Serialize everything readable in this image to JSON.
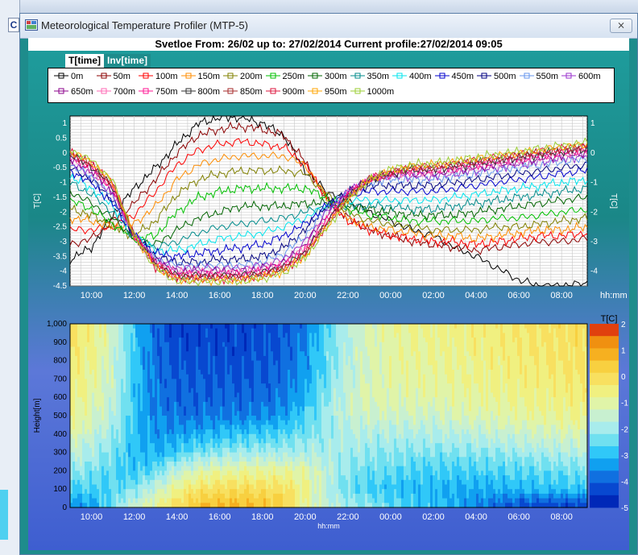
{
  "window": {
    "title": "Meteorological Temperature Profiler (MTP-5)",
    "close_label": "⨯"
  },
  "header": {
    "text": "Svetloe  From: 26/02 up to: 27/02/2014 Current profile:27/02/2014 09:05"
  },
  "tabs": [
    {
      "label": "T[time]",
      "active": true
    },
    {
      "label": "Inv[time]",
      "active": false
    }
  ],
  "desktop": {
    "left_tab_label": "C"
  },
  "chart_data": [
    {
      "type": "line",
      "ylabel_left": "T[C]",
      "ylabel_right": "T[C]",
      "xlabel": "hh:mm",
      "ylim": [
        -4.5,
        1.25
      ],
      "y_ticks_left": [
        "1",
        "0.5",
        "0",
        "-0.5",
        "-1",
        "-1.5",
        "-2",
        "-2.5",
        "-3",
        "-3.5",
        "-4",
        "-4.5"
      ],
      "y_tick_values_left": [
        1,
        0.5,
        0,
        -0.5,
        -1,
        -1.5,
        -2,
        -2.5,
        -3,
        -3.5,
        -4,
        -4.5
      ],
      "y_ticks_right": [
        "1",
        "0",
        "-1",
        "-2",
        "-3",
        "-4"
      ],
      "y_tick_values_right": [
        1,
        0,
        -1,
        -2,
        -3,
        -4
      ],
      "x_range_hours": [
        9.0,
        33.2
      ],
      "x_ticks": [
        "10:00",
        "12:00",
        "14:00",
        "16:00",
        "18:00",
        "20:00",
        "22:00",
        "00:00",
        "02:00",
        "04:00",
        "06:00",
        "08:00"
      ],
      "x_tick_hours": [
        10,
        12,
        14,
        16,
        18,
        20,
        22,
        24,
        26,
        28,
        30,
        32
      ],
      "grid": true,
      "legend_position": "top",
      "hours": [
        9,
        10,
        11,
        12,
        13,
        14,
        15,
        16,
        17,
        18,
        19,
        20,
        21,
        22,
        23,
        24,
        25,
        26,
        27,
        28,
        29,
        30,
        31,
        32,
        33.2
      ],
      "series": [
        {
          "name": "0m",
          "color": "#000000",
          "values": [
            -3.6,
            -3.2,
            -2.1,
            -1.2,
            -0.5,
            0.3,
            1.0,
            1.2,
            1.2,
            1.0,
            0.6,
            -0.6,
            -1.3,
            -1.6,
            -2.0,
            -2.3,
            -2.6,
            -2.8,
            -3.2,
            -3.5,
            -3.9,
            -4.3,
            -4.5,
            -4.5,
            -4.4
          ]
        },
        {
          "name": "50m",
          "color": "#8b0000",
          "values": [
            -3.1,
            -2.9,
            -2.3,
            -1.7,
            -0.9,
            0.0,
            0.6,
            0.8,
            0.9,
            0.8,
            0.6,
            -0.3,
            -1.6,
            -2.2,
            -2.6,
            -2.8,
            -3.0,
            -3.1,
            -3.2,
            -3.3,
            -3.2,
            -3.1,
            -3.0,
            -3.0,
            -2.9
          ]
        },
        {
          "name": "100m",
          "color": "#ff0000",
          "values": [
            -2.6,
            -2.6,
            -2.5,
            -2.1,
            -1.3,
            -0.4,
            0.1,
            0.3,
            0.4,
            0.3,
            0.2,
            -0.4,
            -1.5,
            -2.3,
            -2.6,
            -2.8,
            -2.9,
            -3.0,
            -3.0,
            -3.1,
            -3.0,
            -2.9,
            -2.8,
            -2.8,
            -2.7
          ]
        },
        {
          "name": "150m",
          "color": "#ff8c00",
          "values": [
            -2.2,
            -2.3,
            -2.5,
            -2.4,
            -1.8,
            -0.9,
            -0.4,
            -0.2,
            -0.1,
            -0.1,
            -0.1,
            -0.4,
            -1.5,
            -2.2,
            -2.5,
            -2.6,
            -2.7,
            -2.8,
            -2.8,
            -2.9,
            -2.8,
            -2.7,
            -2.6,
            -2.6,
            -2.5
          ]
        },
        {
          "name": "200m",
          "color": "#808000",
          "values": [
            -1.9,
            -2.1,
            -2.5,
            -2.8,
            -2.3,
            -1.4,
            -0.9,
            -0.7,
            -0.6,
            -0.6,
            -0.6,
            -0.7,
            -1.4,
            -2.0,
            -2.3,
            -2.4,
            -2.5,
            -2.6,
            -2.6,
            -2.6,
            -2.5,
            -2.5,
            -2.4,
            -2.3,
            -2.2
          ]
        },
        {
          "name": "250m",
          "color": "#00c000",
          "values": [
            -1.6,
            -1.9,
            -2.4,
            -2.9,
            -2.8,
            -2.0,
            -1.5,
            -1.3,
            -1.2,
            -1.2,
            -1.2,
            -1.2,
            -1.5,
            -1.9,
            -2.1,
            -2.2,
            -2.3,
            -2.3,
            -2.3,
            -2.3,
            -2.2,
            -2.2,
            -2.1,
            -2.0,
            -1.9
          ]
        },
        {
          "name": "300m",
          "color": "#006400",
          "values": [
            -1.3,
            -1.7,
            -2.2,
            -2.9,
            -3.1,
            -2.6,
            -2.2,
            -2.0,
            -1.8,
            -1.8,
            -1.8,
            -1.7,
            -1.7,
            -1.8,
            -1.9,
            -2.0,
            -2.1,
            -2.1,
            -2.1,
            -2.0,
            -1.9,
            -1.8,
            -1.7,
            -1.6,
            -1.5
          ]
        },
        {
          "name": "350m",
          "color": "#008b8b",
          "values": [
            -1.0,
            -1.4,
            -2.0,
            -2.9,
            -3.2,
            -3.0,
            -2.7,
            -2.5,
            -2.4,
            -2.3,
            -2.2,
            -2.0,
            -1.8,
            -1.8,
            -1.8,
            -1.8,
            -1.9,
            -1.9,
            -1.8,
            -1.7,
            -1.6,
            -1.5,
            -1.4,
            -1.3,
            -1.2
          ]
        },
        {
          "name": "400m",
          "color": "#00e5ee",
          "values": [
            -0.8,
            -1.2,
            -1.8,
            -2.8,
            -3.3,
            -3.3,
            -3.1,
            -2.9,
            -2.8,
            -2.7,
            -2.5,
            -2.2,
            -1.8,
            -1.6,
            -1.6,
            -1.6,
            -1.6,
            -1.6,
            -1.5,
            -1.4,
            -1.3,
            -1.2,
            -1.1,
            -1.0,
            -0.9
          ]
        },
        {
          "name": "450m",
          "color": "#0000cd",
          "values": [
            -0.6,
            -1.0,
            -1.7,
            -2.8,
            -3.4,
            -3.5,
            -3.4,
            -3.3,
            -3.2,
            -3.1,
            -2.8,
            -2.4,
            -1.8,
            -1.4,
            -1.3,
            -1.3,
            -1.3,
            -1.3,
            -1.2,
            -1.1,
            -1.0,
            -0.9,
            -0.8,
            -0.7,
            -0.6
          ]
        },
        {
          "name": "500m",
          "color": "#000080",
          "values": [
            -0.5,
            -0.9,
            -1.6,
            -2.8,
            -3.5,
            -3.7,
            -3.7,
            -3.6,
            -3.6,
            -3.5,
            -3.2,
            -2.6,
            -1.8,
            -1.3,
            -1.1,
            -1.1,
            -1.1,
            -1.1,
            -1.0,
            -0.9,
            -0.8,
            -0.7,
            -0.6,
            -0.5,
            -0.4
          ]
        },
        {
          "name": "550m",
          "color": "#6495ed",
          "values": [
            -0.4,
            -0.8,
            -1.5,
            -2.8,
            -3.6,
            -3.8,
            -3.8,
            -3.8,
            -3.8,
            -3.7,
            -3.4,
            -2.8,
            -1.9,
            -1.3,
            -1.0,
            -0.9,
            -0.9,
            -0.9,
            -0.8,
            -0.7,
            -0.6,
            -0.5,
            -0.4,
            -0.3,
            -0.2
          ]
        },
        {
          "name": "600m",
          "color": "#9932cc",
          "values": [
            -0.3,
            -0.7,
            -1.4,
            -2.8,
            -3.6,
            -3.9,
            -3.9,
            -3.9,
            -3.9,
            -3.8,
            -3.6,
            -3.0,
            -2.0,
            -1.3,
            -0.9,
            -0.8,
            -0.8,
            -0.8,
            -0.7,
            -0.6,
            -0.5,
            -0.4,
            -0.3,
            -0.2,
            -0.1
          ]
        },
        {
          "name": "650m",
          "color": "#8b008b",
          "values": [
            -0.2,
            -0.6,
            -1.3,
            -2.8,
            -3.7,
            -4.0,
            -4.0,
            -4.0,
            -4.0,
            -3.9,
            -3.7,
            -3.1,
            -2.1,
            -1.3,
            -0.9,
            -0.7,
            -0.7,
            -0.7,
            -0.6,
            -0.5,
            -0.4,
            -0.3,
            -0.2,
            -0.1,
            0.0
          ]
        },
        {
          "name": "700m",
          "color": "#ff69b4",
          "values": [
            -0.15,
            -0.55,
            -1.25,
            -2.8,
            -3.7,
            -4.05,
            -4.05,
            -4.05,
            -4.05,
            -3.95,
            -3.75,
            -3.2,
            -2.2,
            -1.35,
            -0.9,
            -0.7,
            -0.65,
            -0.65,
            -0.55,
            -0.45,
            -0.35,
            -0.25,
            -0.15,
            -0.05,
            0.05
          ]
        },
        {
          "name": "750m",
          "color": "#ff1493",
          "values": [
            -0.1,
            -0.5,
            -1.2,
            -2.8,
            -3.75,
            -4.1,
            -4.1,
            -4.1,
            -4.1,
            -4.0,
            -3.8,
            -3.3,
            -2.3,
            -1.4,
            -0.9,
            -0.7,
            -0.6,
            -0.6,
            -0.5,
            -0.4,
            -0.3,
            -0.2,
            -0.1,
            0.0,
            0.1
          ]
        },
        {
          "name": "800m",
          "color": "#2f2f2f",
          "values": [
            -0.05,
            -0.45,
            -1.15,
            -2.8,
            -3.8,
            -4.15,
            -4.15,
            -4.15,
            -4.15,
            -4.05,
            -3.85,
            -3.35,
            -2.35,
            -1.45,
            -0.9,
            -0.7,
            -0.55,
            -0.55,
            -0.45,
            -0.35,
            -0.25,
            -0.15,
            -0.05,
            0.05,
            0.15
          ]
        },
        {
          "name": "850m",
          "color": "#a52a2a",
          "values": [
            0.0,
            -0.4,
            -1.1,
            -2.8,
            -3.8,
            -4.2,
            -4.2,
            -4.2,
            -4.2,
            -4.1,
            -3.9,
            -3.4,
            -2.4,
            -1.5,
            -0.9,
            -0.7,
            -0.5,
            -0.5,
            -0.4,
            -0.3,
            -0.2,
            -0.1,
            0.0,
            0.1,
            0.2
          ]
        },
        {
          "name": "900m",
          "color": "#dc143c",
          "values": [
            0.0,
            -0.35,
            -1.05,
            -2.8,
            -3.85,
            -4.25,
            -4.25,
            -4.25,
            -4.25,
            -4.15,
            -3.95,
            -3.45,
            -2.45,
            -1.5,
            -0.9,
            -0.65,
            -0.5,
            -0.45,
            -0.35,
            -0.25,
            -0.15,
            -0.05,
            0.05,
            0.15,
            0.25
          ]
        },
        {
          "name": "950m",
          "color": "#ffa500",
          "values": [
            0.05,
            -0.3,
            -1.0,
            -2.8,
            -3.85,
            -4.3,
            -4.3,
            -4.3,
            -4.3,
            -4.2,
            -4.0,
            -3.5,
            -2.5,
            -1.55,
            -0.9,
            -0.6,
            -0.45,
            -0.4,
            -0.3,
            -0.2,
            -0.1,
            0.0,
            0.1,
            0.2,
            0.3
          ]
        },
        {
          "name": "1000m",
          "color": "#9acd32",
          "values": [
            0.1,
            -0.25,
            -0.95,
            -2.8,
            -3.9,
            -4.35,
            -4.35,
            -4.35,
            -4.35,
            -4.25,
            -4.05,
            -3.55,
            -2.55,
            -1.6,
            -0.9,
            -0.55,
            -0.4,
            -0.35,
            -0.25,
            -0.15,
            -0.05,
            0.05,
            0.15,
            0.25,
            0.35
          ]
        }
      ]
    },
    {
      "type": "heatmap",
      "ylabel": "Height[m]",
      "xlabel": "hh:mm",
      "colorbar_label": "T[C]",
      "ylim": [
        0,
        1000
      ],
      "y_ticks": [
        "1,000",
        "900",
        "800",
        "700",
        "600",
        "500",
        "400",
        "300",
        "200",
        "100",
        "0"
      ],
      "y_tick_values": [
        1000,
        900,
        800,
        700,
        600,
        500,
        400,
        300,
        200,
        100,
        0
      ],
      "x_range_hours": [
        9.0,
        33.2
      ],
      "x_ticks": [
        "10:00",
        "12:00",
        "14:00",
        "16:00",
        "18:00",
        "20:00",
        "22:00",
        "00:00",
        "02:00",
        "04:00",
        "06:00",
        "08:00"
      ],
      "x_tick_hours": [
        10,
        12,
        14,
        16,
        18,
        20,
        22,
        24,
        26,
        28,
        30,
        32
      ],
      "colorbar_ticks": [
        "2",
        "1",
        "0",
        "-1",
        "-2",
        "-3",
        "-4",
        "-5"
      ],
      "colorbar_levels": [
        2,
        1.5,
        1,
        0.5,
        0,
        -0.5,
        -1,
        -1.5,
        -2,
        -2.5,
        -3,
        -3.5,
        -4,
        -4.5,
        -5
      ],
      "colorbar_colors": [
        "#e0400e",
        "#f09010",
        "#f6b020",
        "#f8d040",
        "#f8e060",
        "#f0f080",
        "#e0f4a8",
        "#c8f0d0",
        "#a8ecec",
        "#70e0f0",
        "#30c8f8",
        "#10a0f0",
        "#1070e0",
        "#0848d0",
        "#0028b8"
      ],
      "hours": [
        9,
        10,
        11,
        12,
        13,
        14,
        15,
        16,
        17,
        18,
        19,
        20,
        21,
        22,
        23,
        24,
        25,
        26,
        27,
        28,
        29,
        30,
        31,
        32,
        33.2
      ],
      "heights": [
        0,
        100,
        200,
        300,
        400,
        500,
        600,
        700,
        800,
        900,
        1000
      ]
    }
  ]
}
